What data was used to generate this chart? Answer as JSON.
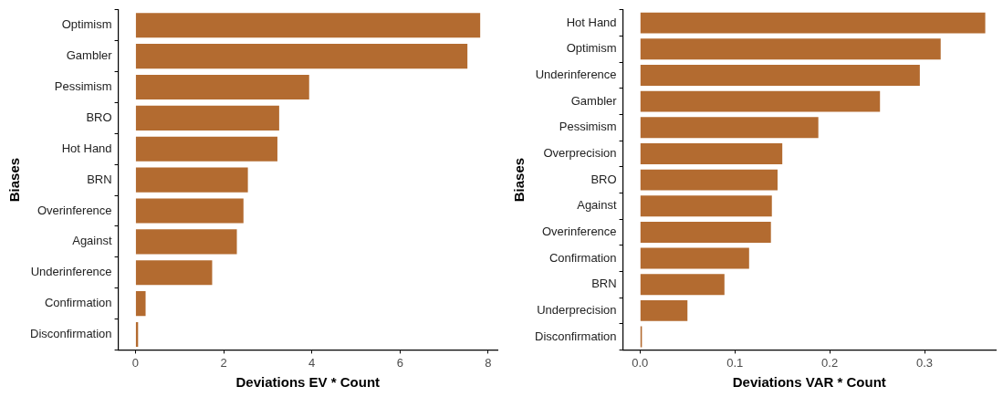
{
  "chart_data": [
    {
      "type": "bar",
      "orientation": "horizontal",
      "xlabel": "Deviations EV * Count",
      "ylabel": "Biases",
      "categories": [
        "Optimism",
        "Gambler",
        "Pessimism",
        "BRO",
        "Hot Hand",
        "BRN",
        "Overinference",
        "Against",
        "Underinference",
        "Confirmation",
        "Disconfirmation"
      ],
      "values": [
        7.82,
        7.53,
        3.94,
        3.26,
        3.22,
        2.55,
        2.45,
        2.3,
        1.74,
        0.23,
        0.06
      ],
      "color": "#b36b30",
      "xlim": [
        -0.39,
        8.21
      ],
      "xticks": [
        0,
        2,
        4,
        6,
        8
      ],
      "grid": false,
      "legend": false
    },
    {
      "type": "bar",
      "orientation": "horizontal",
      "xlabel": "Deviations VAR * Count",
      "ylabel": "Biases",
      "categories": [
        "Hot Hand",
        "Optimism",
        "Underinference",
        "Gambler",
        "Pessimism",
        "Overprecision",
        "BRO",
        "Against",
        "Overinference",
        "Confirmation",
        "BRN",
        "Underprecision",
        "Disconfirmation"
      ],
      "values": [
        0.364,
        0.317,
        0.295,
        0.253,
        0.188,
        0.15,
        0.145,
        0.139,
        0.138,
        0.115,
        0.089,
        0.05,
        0.002
      ],
      "color": "#b36b30",
      "xlim": [
        -0.018,
        0.375
      ],
      "xticks": [
        {
          "value": 0,
          "label": "0.0"
        },
        0.1,
        0.2,
        0.3
      ],
      "grid": false,
      "legend": false
    }
  ]
}
